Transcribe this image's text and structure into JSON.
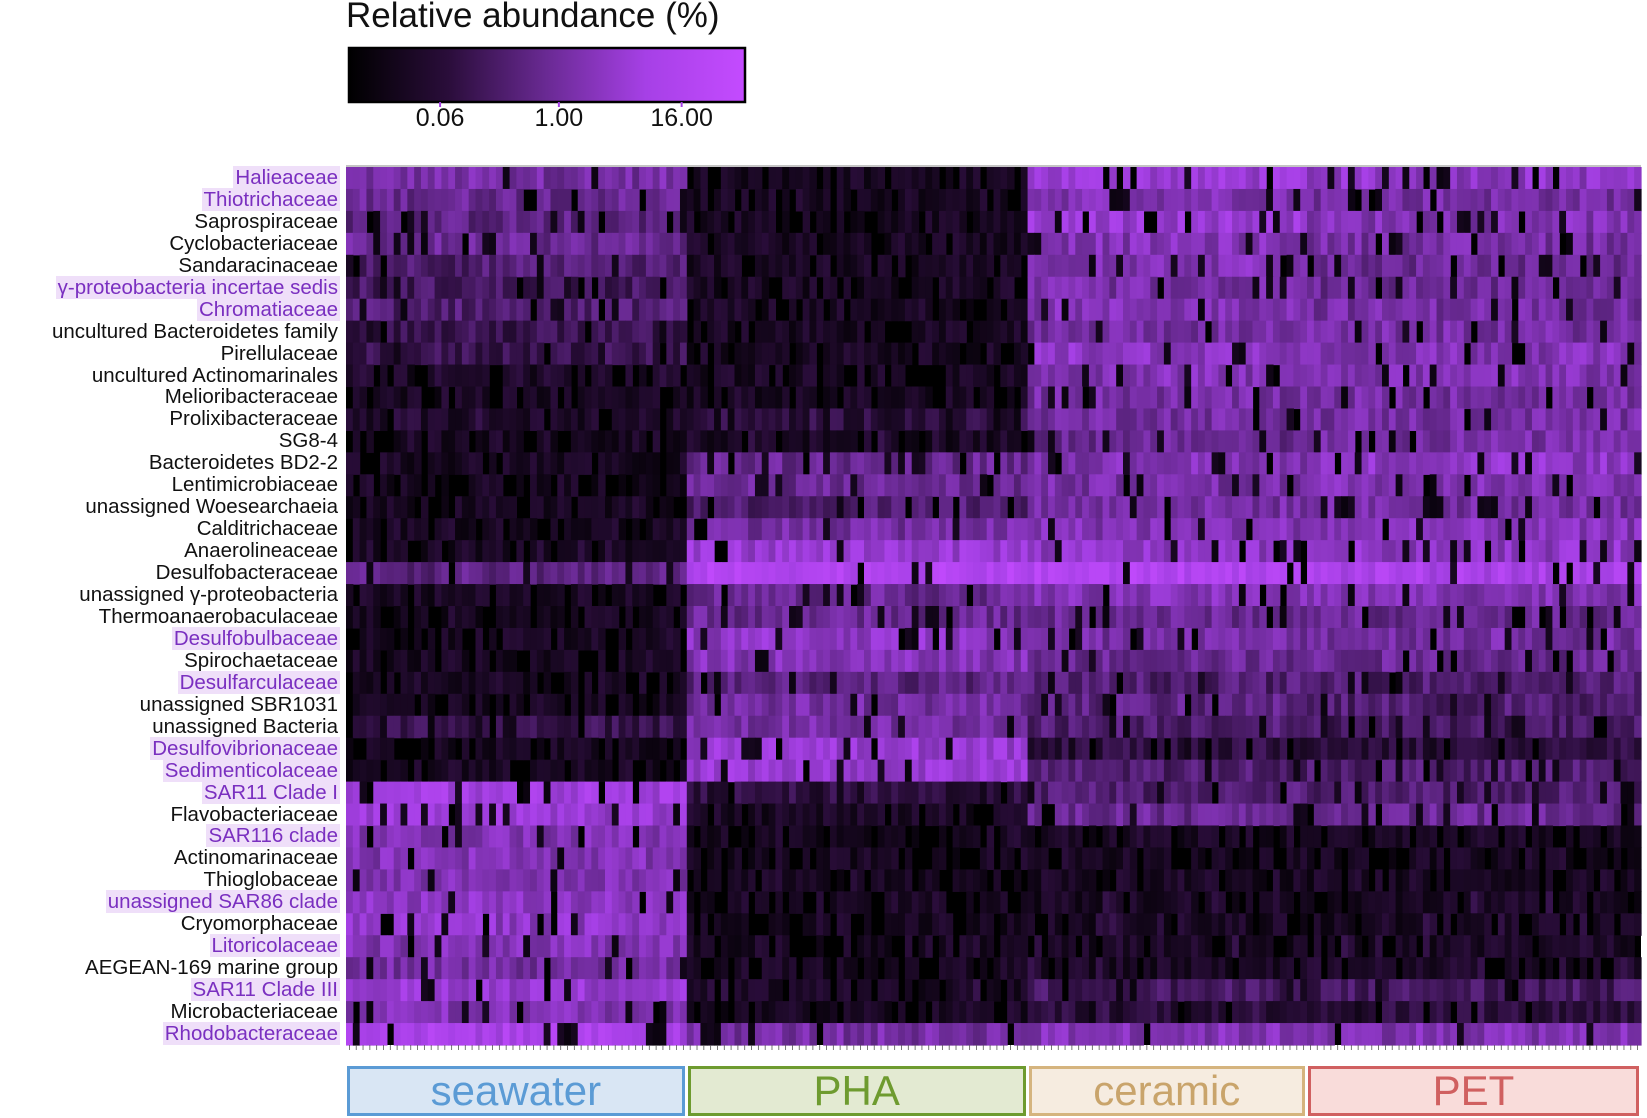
{
  "chart_data": {
    "type": "heatmap",
    "colorbar": {
      "title": "Relative abundance (%)",
      "ticks": [
        "0.06",
        "1.00",
        "16.00"
      ],
      "scale": "log",
      "colors": [
        "#000000",
        "#2a0d3a",
        "#6a2a94",
        "#a640e6",
        "#c44bff"
      ]
    },
    "rows": [
      {
        "label": "Halieaceae",
        "highlight": true,
        "levels": [
          0.55,
          0.1,
          0.7,
          0.65
        ]
      },
      {
        "label": "Thiotrichaceae",
        "highlight": true,
        "levels": [
          0.5,
          0.08,
          0.6,
          0.55
        ]
      },
      {
        "label": "Saprospiraceae",
        "highlight": false,
        "levels": [
          0.45,
          0.12,
          0.7,
          0.6
        ]
      },
      {
        "label": "Cyclobacteriaceae",
        "highlight": false,
        "levels": [
          0.5,
          0.15,
          0.6,
          0.55
        ]
      },
      {
        "label": "Sandaracinaceae",
        "highlight": false,
        "levels": [
          0.4,
          0.15,
          0.6,
          0.5
        ]
      },
      {
        "label": "γ-proteobacteria incertae sedis",
        "highlight": true,
        "levels": [
          0.35,
          0.1,
          0.55,
          0.5
        ]
      },
      {
        "label": "Chromatiaceae",
        "highlight": true,
        "levels": [
          0.4,
          0.1,
          0.6,
          0.55
        ]
      },
      {
        "label": "uncultured Bacteroidetes family",
        "highlight": false,
        "levels": [
          0.3,
          0.1,
          0.55,
          0.55
        ]
      },
      {
        "label": "Pirellulaceae",
        "highlight": false,
        "levels": [
          0.3,
          0.1,
          0.65,
          0.6
        ]
      },
      {
        "label": "uncultured Actinomarinales",
        "highlight": false,
        "levels": [
          0.2,
          0.05,
          0.6,
          0.6
        ]
      },
      {
        "label": "Melioribacteraceae",
        "highlight": false,
        "levels": [
          0.15,
          0.1,
          0.55,
          0.55
        ]
      },
      {
        "label": "Prolixibacteraceae",
        "highlight": false,
        "levels": [
          0.2,
          0.25,
          0.55,
          0.55
        ]
      },
      {
        "label": "SG8-4",
        "highlight": false,
        "levels": [
          0.1,
          0.2,
          0.5,
          0.55
        ]
      },
      {
        "label": "Bacteroidetes BD2-2",
        "highlight": false,
        "levels": [
          0.1,
          0.5,
          0.6,
          0.65
        ]
      },
      {
        "label": "Lentimicrobiaceae",
        "highlight": false,
        "levels": [
          0.1,
          0.5,
          0.55,
          0.6
        ]
      },
      {
        "label": "unassigned Woesearchaeia",
        "highlight": false,
        "levels": [
          0.1,
          0.4,
          0.55,
          0.55
        ]
      },
      {
        "label": "Calditrichaceae",
        "highlight": false,
        "levels": [
          0.15,
          0.55,
          0.6,
          0.6
        ]
      },
      {
        "label": "Anaerolineaceae",
        "highlight": false,
        "levels": [
          0.2,
          0.7,
          0.65,
          0.65
        ]
      },
      {
        "label": "Desulfobacteraceae",
        "highlight": false,
        "levels": [
          0.45,
          0.85,
          0.85,
          0.8
        ]
      },
      {
        "label": "unassigned γ-proteobacteria",
        "highlight": false,
        "levels": [
          0.15,
          0.5,
          0.6,
          0.6
        ]
      },
      {
        "label": "Thermoanaerobaculaceae",
        "highlight": false,
        "levels": [
          0.1,
          0.5,
          0.5,
          0.5
        ]
      },
      {
        "label": "Desulfobulbaceae",
        "highlight": true,
        "levels": [
          0.15,
          0.65,
          0.55,
          0.55
        ]
      },
      {
        "label": "Spirochaetaceae",
        "highlight": false,
        "levels": [
          0.15,
          0.6,
          0.5,
          0.5
        ]
      },
      {
        "label": "Desulfarculaceae",
        "highlight": true,
        "levels": [
          0.1,
          0.45,
          0.4,
          0.4
        ]
      },
      {
        "label": "unassigned SBR1031",
        "highlight": false,
        "levels": [
          0.1,
          0.55,
          0.45,
          0.4
        ]
      },
      {
        "label": "unassigned Bacteria",
        "highlight": false,
        "levels": [
          0.3,
          0.55,
          0.4,
          0.35
        ]
      },
      {
        "label": "Desulfovibrionaceae",
        "highlight": true,
        "levels": [
          0.1,
          0.7,
          0.25,
          0.25
        ]
      },
      {
        "label": "Sedimenticolaceae",
        "highlight": true,
        "levels": [
          0.1,
          0.7,
          0.4,
          0.4
        ]
      },
      {
        "label": "SAR11 Clade I",
        "highlight": true,
        "levels": [
          0.75,
          0.25,
          0.4,
          0.4
        ]
      },
      {
        "label": "Flavobacteriaceae",
        "highlight": false,
        "levels": [
          0.7,
          0.2,
          0.5,
          0.5
        ]
      },
      {
        "label": "SAR116 clade",
        "highlight": true,
        "levels": [
          0.6,
          0.05,
          0.15,
          0.15
        ]
      },
      {
        "label": "Actinomarinaceae",
        "highlight": false,
        "levels": [
          0.6,
          0.05,
          0.1,
          0.1
        ]
      },
      {
        "label": "Thioglobaceae",
        "highlight": false,
        "levels": [
          0.6,
          0.1,
          0.15,
          0.15
        ]
      },
      {
        "label": "unassigned SAR86 clade",
        "highlight": true,
        "levels": [
          0.65,
          0.1,
          0.2,
          0.2
        ]
      },
      {
        "label": "Cryomorphaceae",
        "highlight": false,
        "levels": [
          0.65,
          0.1,
          0.2,
          0.2
        ]
      },
      {
        "label": "Litoricolaceae",
        "highlight": true,
        "levels": [
          0.6,
          0.1,
          0.2,
          0.2
        ]
      },
      {
        "label": "AEGEAN-169 marine group",
        "highlight": false,
        "levels": [
          0.55,
          0.1,
          0.2,
          0.2
        ]
      },
      {
        "label": "SAR11 Clade III",
        "highlight": true,
        "levels": [
          0.7,
          0.2,
          0.35,
          0.35
        ]
      },
      {
        "label": "Microbacteriaceae",
        "highlight": false,
        "levels": [
          0.6,
          0.15,
          0.25,
          0.25
        ]
      },
      {
        "label": "Rhodobacteraceae",
        "highlight": true,
        "levels": [
          0.8,
          0.55,
          0.6,
          0.6
        ]
      }
    ],
    "groups": [
      {
        "label": "seawater",
        "columns": 50,
        "fill": "#d9e6f4",
        "border": "#5b9bd5",
        "text": "#5b9bd5"
      },
      {
        "label": "PHA",
        "columns": 50,
        "fill": "#e3ead2",
        "border": "#6e9b2f",
        "text": "#6e9b2f"
      },
      {
        "label": "ceramic",
        "columns": 41,
        "fill": "#f6ece0",
        "border": "#d5b47e",
        "text": "#c9a46b"
      },
      {
        "label": "PET",
        "columns": 49,
        "fill": "#f9dcda",
        "border": "#d06060",
        "text": "#d06060"
      }
    ]
  }
}
